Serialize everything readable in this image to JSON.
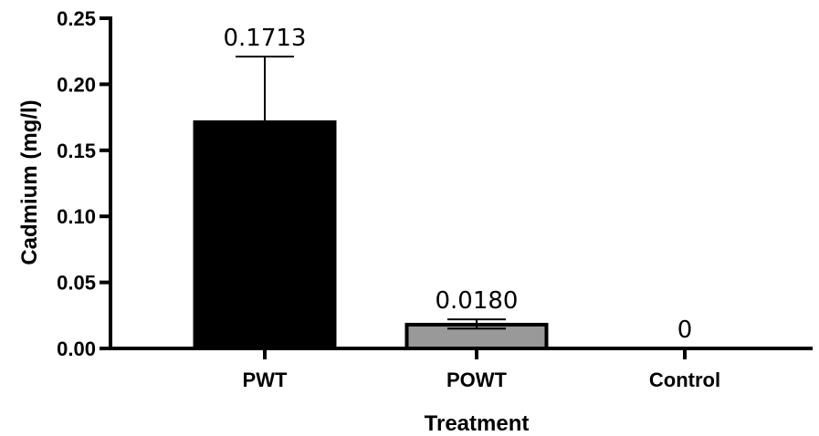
{
  "chart_data": {
    "type": "bar",
    "categories": [
      "PWT",
      "POWT",
      "Control"
    ],
    "values": [
      0.1713,
      0.018,
      0
    ],
    "error_upper": [
      0.221,
      0.022,
      0
    ],
    "error_lower": [
      0.1713,
      0.015,
      0
    ],
    "data_labels": [
      "0.1713",
      "0.0180",
      "0"
    ],
    "bar_colors": [
      "#000000",
      "#999999",
      "#ffffff"
    ],
    "xlabel": "Treatment",
    "ylabel": "Cadmium (mg/l)",
    "ylim": [
      0,
      0.25
    ],
    "yticks": [
      0.0,
      0.05,
      0.1,
      0.15,
      0.2,
      0.25
    ],
    "ytick_labels": [
      "0.00",
      "0.05",
      "0.10",
      "0.15",
      "0.20",
      "0.25"
    ],
    "grid": false,
    "legend": "none"
  }
}
